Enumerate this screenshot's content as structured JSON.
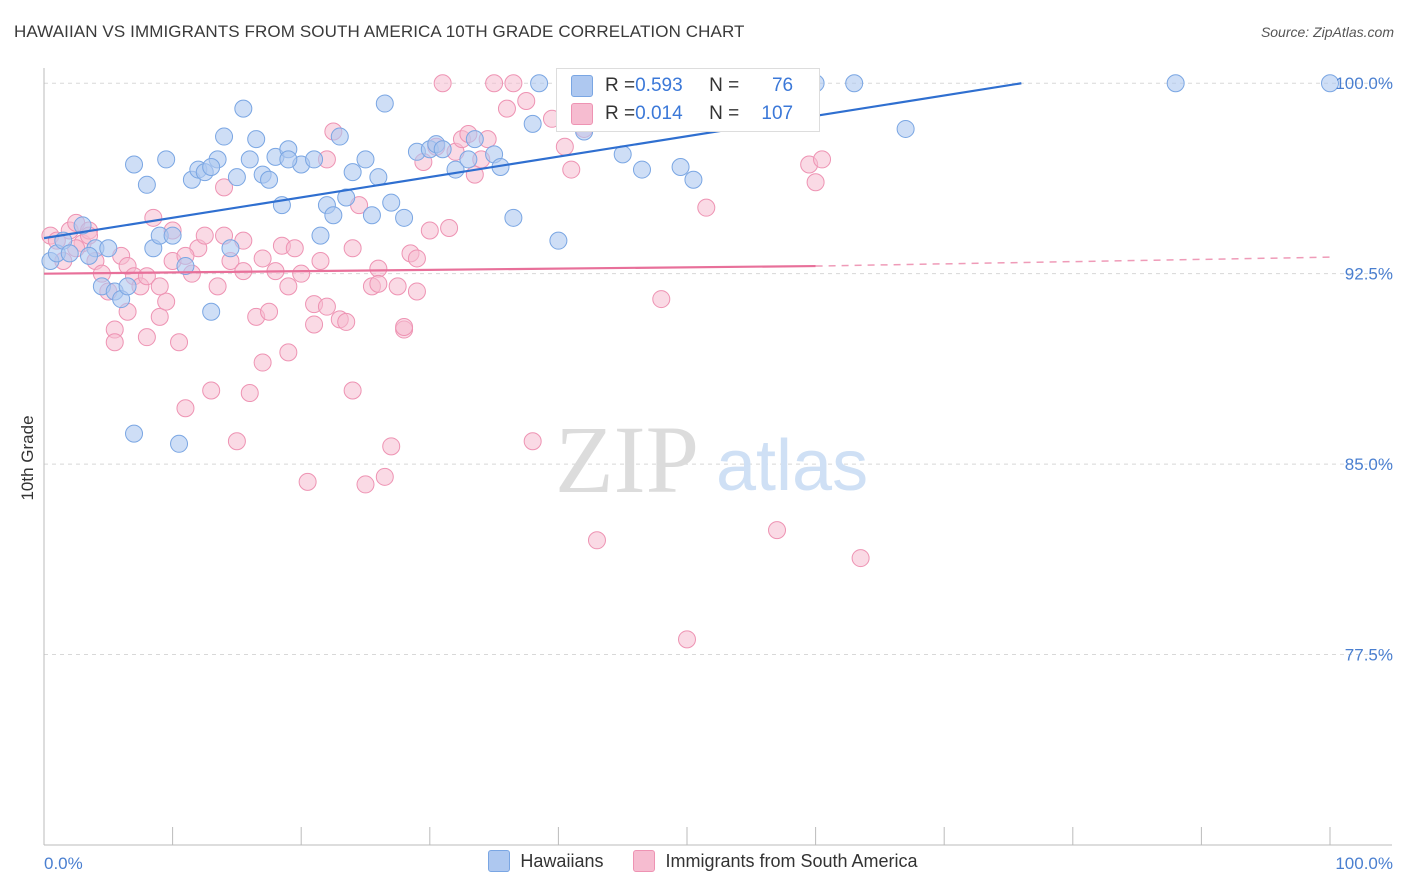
{
  "header": {
    "title": "HAWAIIAN VS IMMIGRANTS FROM SOUTH AMERICA 10TH GRADE CORRELATION CHART",
    "source": "Source: ZipAtlas.com"
  },
  "watermark": {
    "zip": "ZIP",
    "atlas": "atlas"
  },
  "legend_box": {
    "row1": {
      "r_label": "R = ",
      "r_value": "0.593",
      "n_label": "N = ",
      "n_value": "76"
    },
    "row2": {
      "r_label": "R = ",
      "r_value": "0.014",
      "n_label": "N = ",
      "n_value": "107"
    }
  },
  "bottom_legend": {
    "item1": "Hawaiians",
    "item2": "Immigrants from South America"
  },
  "colors": {
    "hawaiians_fill": "#aec8f0",
    "hawaiians_stroke": "#7aa6e3",
    "hawaiians_line": "#2f6fd0",
    "immigrants_fill": "#f6bcd0",
    "immigrants_stroke": "#ee93b3",
    "immigrants_line": "#e8709a",
    "tick_label": "#4a7fd0"
  },
  "chart_data": {
    "type": "scatter",
    "title": "HAWAIIAN VS IMMIGRANTS FROM SOUTH AMERICA 10TH GRADE CORRELATION CHART",
    "xlabel": "",
    "ylabel": "10th Grade",
    "x_tick_labels": [
      "0.0%",
      "100.0%"
    ],
    "y_tick_labels": [
      "100.0%",
      "92.5%",
      "85.0%",
      "77.5%"
    ],
    "y_ticks": [
      100.0,
      92.5,
      85.0,
      77.5
    ],
    "xlim": [
      0,
      100
    ],
    "ylim": [
      70.0,
      100.6
    ],
    "grid": true,
    "legend_position": "top-center",
    "series": [
      {
        "name": "Hawaiians",
        "R": 0.593,
        "N": 76,
        "trend": {
          "x0": 0,
          "y0": 93.9,
          "x1": 76,
          "y1": 100.0,
          "dashed_to": 76
        },
        "points": [
          [
            0.5,
            93.0
          ],
          [
            1.0,
            93.3
          ],
          [
            1.5,
            93.8
          ],
          [
            2.0,
            93.3
          ],
          [
            3.0,
            94.4
          ],
          [
            4.0,
            93.5
          ],
          [
            5.0,
            93.5
          ],
          [
            4.5,
            92.0
          ],
          [
            5.5,
            91.8
          ],
          [
            6.0,
            91.5
          ],
          [
            7.0,
            96.8
          ],
          [
            7.0,
            86.2
          ],
          [
            8.0,
            96.0
          ],
          [
            8.5,
            93.5
          ],
          [
            9.0,
            94.0
          ],
          [
            9.5,
            97.0
          ],
          [
            10.0,
            94.0
          ],
          [
            10.5,
            85.8
          ],
          [
            11.0,
            92.8
          ],
          [
            11.5,
            96.2
          ],
          [
            12.0,
            96.6
          ],
          [
            12.5,
            96.5
          ],
          [
            13.0,
            91.0
          ],
          [
            13.5,
            97.0
          ],
          [
            14.0,
            97.9
          ],
          [
            14.5,
            93.5
          ],
          [
            15.0,
            96.3
          ],
          [
            15.5,
            99.0
          ],
          [
            16.0,
            97.0
          ],
          [
            16.5,
            97.8
          ],
          [
            17.0,
            96.4
          ],
          [
            17.5,
            96.2
          ],
          [
            18.0,
            97.1
          ],
          [
            18.5,
            95.2
          ],
          [
            19.0,
            97.4
          ],
          [
            20.0,
            96.8
          ],
          [
            21.0,
            97.0
          ],
          [
            21.5,
            94.0
          ],
          [
            22.0,
            95.2
          ],
          [
            22.5,
            94.8
          ],
          [
            23.0,
            97.9
          ],
          [
            23.5,
            95.5
          ],
          [
            24.0,
            96.5
          ],
          [
            25.0,
            97.0
          ],
          [
            25.5,
            94.8
          ],
          [
            26.0,
            96.3
          ],
          [
            27.0,
            95.3
          ],
          [
            28.0,
            94.7
          ],
          [
            29.0,
            97.3
          ],
          [
            30.0,
            97.4
          ],
          [
            30.5,
            97.6
          ],
          [
            31.0,
            97.4
          ],
          [
            32.0,
            96.6
          ],
          [
            33.0,
            97.0
          ],
          [
            33.5,
            97.8
          ],
          [
            35.0,
            97.2
          ],
          [
            36.5,
            94.7
          ],
          [
            38.0,
            98.4
          ],
          [
            40.0,
            93.8
          ],
          [
            42.0,
            98.1
          ],
          [
            45.0,
            97.2
          ],
          [
            46.5,
            96.6
          ],
          [
            49.5,
            96.7
          ],
          [
            50.5,
            96.2
          ],
          [
            60.0,
            100.0
          ],
          [
            63.0,
            100.0
          ],
          [
            67.0,
            98.2
          ],
          [
            88.0,
            100.0
          ],
          [
            100.0,
            100.0
          ],
          [
            13.0,
            96.7
          ],
          [
            3.5,
            93.2
          ],
          [
            6.5,
            92.0
          ],
          [
            19.0,
            97.0
          ],
          [
            26.5,
            99.2
          ],
          [
            35.5,
            96.7
          ],
          [
            38.5,
            100.0
          ]
        ]
      },
      {
        "name": "Immigrants from South America",
        "R": 0.014,
        "N": 107,
        "trend": {
          "x0": 0,
          "y0": 92.5,
          "x1": 60,
          "y1": 92.8,
          "dashed_to": 100
        },
        "points": [
          [
            0.5,
            94.0
          ],
          [
            1.0,
            93.8
          ],
          [
            1.5,
            93.0
          ],
          [
            2.0,
            94.2
          ],
          [
            2.5,
            94.5
          ],
          [
            3.0,
            93.7
          ],
          [
            3.5,
            94.2
          ],
          [
            4.0,
            93.0
          ],
          [
            4.5,
            92.5
          ],
          [
            5.0,
            91.8
          ],
          [
            5.5,
            90.3
          ],
          [
            5.5,
            89.8
          ],
          [
            6.0,
            93.2
          ],
          [
            6.5,
            92.8
          ],
          [
            7.0,
            92.4
          ],
          [
            7.5,
            92.0
          ],
          [
            8.0,
            90.0
          ],
          [
            8.5,
            94.7
          ],
          [
            9.0,
            90.8
          ],
          [
            9.5,
            91.4
          ],
          [
            10.0,
            93.0
          ],
          [
            10.5,
            89.8
          ],
          [
            11.0,
            87.2
          ],
          [
            11.5,
            92.5
          ],
          [
            12.0,
            93.5
          ],
          [
            12.5,
            94.0
          ],
          [
            13.0,
            87.9
          ],
          [
            13.5,
            92.0
          ],
          [
            14.0,
            95.9
          ],
          [
            14.5,
            93.0
          ],
          [
            15.0,
            85.9
          ],
          [
            15.5,
            93.8
          ],
          [
            16.0,
            87.8
          ],
          [
            16.5,
            90.8
          ],
          [
            17.0,
            89.0
          ],
          [
            17.5,
            91.0
          ],
          [
            18.0,
            92.6
          ],
          [
            18.5,
            93.6
          ],
          [
            19.0,
            89.4
          ],
          [
            19.5,
            93.5
          ],
          [
            20.0,
            92.5
          ],
          [
            20.5,
            84.3
          ],
          [
            21.0,
            91.3
          ],
          [
            21.5,
            93.0
          ],
          [
            22.0,
            97.0
          ],
          [
            22.5,
            98.1
          ],
          [
            23.0,
            90.7
          ],
          [
            23.5,
            90.6
          ],
          [
            24.0,
            87.9
          ],
          [
            24.5,
            95.2
          ],
          [
            25.0,
            84.2
          ],
          [
            25.5,
            92.0
          ],
          [
            26.0,
            92.7
          ],
          [
            26.5,
            84.5
          ],
          [
            27.0,
            85.7
          ],
          [
            27.5,
            92.0
          ],
          [
            28.0,
            90.3
          ],
          [
            28.5,
            93.3
          ],
          [
            29.0,
            91.8
          ],
          [
            29.5,
            96.9
          ],
          [
            30.0,
            94.2
          ],
          [
            30.5,
            97.5
          ],
          [
            31.0,
            100.0
          ],
          [
            32.0,
            97.3
          ],
          [
            32.5,
            97.8
          ],
          [
            33.0,
            98.0
          ],
          [
            33.5,
            96.4
          ],
          [
            34.0,
            97.0
          ],
          [
            35.0,
            100.0
          ],
          [
            36.0,
            99.0
          ],
          [
            37.5,
            99.3
          ],
          [
            38.0,
            85.9
          ],
          [
            39.5,
            98.6
          ],
          [
            40.5,
            97.5
          ],
          [
            41.0,
            96.6
          ],
          [
            42.0,
            98.2
          ],
          [
            43.0,
            82.0
          ],
          [
            44.5,
            100.0
          ],
          [
            46.0,
            99.7
          ],
          [
            48.0,
            91.5
          ],
          [
            50.0,
            78.1
          ],
          [
            51.5,
            95.1
          ],
          [
            57.0,
            82.4
          ],
          [
            59.5,
            96.8
          ],
          [
            60.0,
            96.1
          ],
          [
            60.5,
            97.0
          ],
          [
            63.5,
            81.3
          ],
          [
            2.5,
            93.5
          ],
          [
            3.5,
            94.0
          ],
          [
            6.5,
            91.0
          ],
          [
            8.0,
            92.4
          ],
          [
            9.0,
            92.0
          ],
          [
            10.0,
            94.2
          ],
          [
            11.0,
            93.2
          ],
          [
            14.0,
            94.0
          ],
          [
            15.5,
            92.6
          ],
          [
            17.0,
            93.1
          ],
          [
            19.0,
            92.0
          ],
          [
            21.0,
            90.5
          ],
          [
            22.0,
            91.2
          ],
          [
            24.0,
            93.5
          ],
          [
            26.0,
            92.1
          ],
          [
            28.0,
            90.4
          ],
          [
            29.0,
            93.1
          ],
          [
            31.5,
            94.3
          ],
          [
            34.5,
            97.8
          ],
          [
            36.5,
            100.0
          ]
        ]
      }
    ]
  }
}
